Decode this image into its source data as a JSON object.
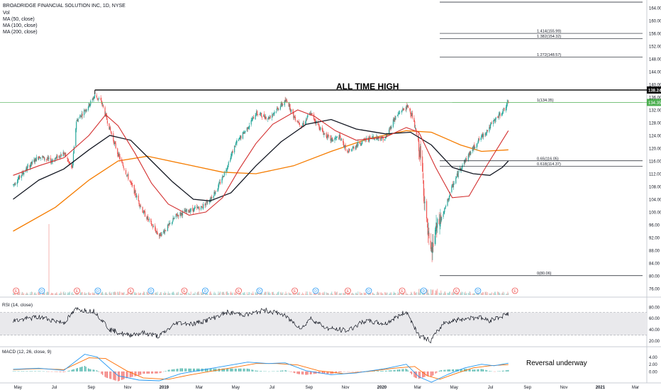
{
  "header": {
    "title": "BROADRIDGE FINANCIAL SOLUTION INC, 1D, NYSE",
    "indicators": [
      "Vol",
      "MA (50, close)",
      "MA (100, close)",
      "MA (200, close)"
    ]
  },
  "annotations": {
    "ath_label": "ALL TIME HIGH",
    "reversal_label": "Reversal underway"
  },
  "colors": {
    "candle_up": "#26a69a",
    "candle_down": "#ef5350",
    "ma50": "#d32f2f",
    "ma100": "#131722",
    "ma200": "#f57c00",
    "rsi": "#131722",
    "rsi_band": "#e9e9ec",
    "macd": "#2196f3",
    "signal": "#ff6d00",
    "ath_line": "#000000",
    "last_price_line": "#4caf50",
    "fib_line": "#131722"
  },
  "chart_data": {
    "type": "line",
    "price_axis": {
      "ticks": [
        "164.00",
        "160.00",
        "156.00",
        "152.00",
        "148.00",
        "144.00",
        "140.00",
        "136.00",
        "132.00",
        "128.00",
        "124.00",
        "120.00",
        "116.00",
        "112.00",
        "108.00",
        "104.00",
        "100.00",
        "96.00",
        "92.00",
        "88.00",
        "84.00",
        "80.00",
        "76.00"
      ],
      "ath_value_label": "138.24",
      "last_value_label": "134.35",
      "ylim": [
        74,
        166
      ]
    },
    "time_axis_labels": [
      "May",
      "Jul",
      "Sep",
      "Nov",
      "2019",
      "Mar",
      "May",
      "Jul",
      "Sep",
      "Nov",
      "2020",
      "Mar",
      "May",
      "Jul",
      "Sep",
      "Nov",
      "2021",
      "Mar"
    ],
    "price_path": [
      {
        "d": "2018-04-23",
        "p": 108.5
      },
      {
        "d": "2018-05-15",
        "p": 113.5
      },
      {
        "d": "2018-06-05",
        "p": 117.5
      },
      {
        "d": "2018-06-26",
        "p": 116.0
      },
      {
        "d": "2018-07-17",
        "p": 118.5
      },
      {
        "d": "2018-07-31",
        "p": 113.5
      },
      {
        "d": "2018-08-07",
        "p": 128.5
      },
      {
        "d": "2018-08-28",
        "p": 133.5
      },
      {
        "d": "2018-09-07",
        "p": 136.5
      },
      {
        "d": "2018-09-18",
        "p": 134.5
      },
      {
        "d": "2018-10-02",
        "p": 126.0
      },
      {
        "d": "2018-10-16",
        "p": 118.0
      },
      {
        "d": "2018-10-30",
        "p": 112.0
      },
      {
        "d": "2018-11-13",
        "p": 106.0
      },
      {
        "d": "2018-11-27",
        "p": 100.0
      },
      {
        "d": "2018-12-11",
        "p": 96.0
      },
      {
        "d": "2018-12-24",
        "p": 92.5
      },
      {
        "d": "2019-01-08",
        "p": 95.5
      },
      {
        "d": "2019-01-22",
        "p": 99.0
      },
      {
        "d": "2019-02-12",
        "p": 100.5
      },
      {
        "d": "2019-03-05",
        "p": 101.5
      },
      {
        "d": "2019-03-19",
        "p": 104.0
      },
      {
        "d": "2019-04-02",
        "p": 108.0
      },
      {
        "d": "2019-04-16",
        "p": 114.0
      },
      {
        "d": "2019-04-30",
        "p": 121.0
      },
      {
        "d": "2019-05-21",
        "p": 126.5
      },
      {
        "d": "2019-06-04",
        "p": 131.0
      },
      {
        "d": "2019-06-25",
        "p": 129.5
      },
      {
        "d": "2019-07-16",
        "p": 133.5
      },
      {
        "d": "2019-07-26",
        "p": 135.0
      },
      {
        "d": "2019-08-06",
        "p": 130.0
      },
      {
        "d": "2019-08-20",
        "p": 127.0
      },
      {
        "d": "2019-09-03",
        "p": 131.0
      },
      {
        "d": "2019-09-24",
        "p": 125.0
      },
      {
        "d": "2019-10-08",
        "p": 122.5
      },
      {
        "d": "2019-10-22",
        "p": 123.5
      },
      {
        "d": "2019-11-05",
        "p": 118.5
      },
      {
        "d": "2019-11-19",
        "p": 121.0
      },
      {
        "d": "2019-12-03",
        "p": 122.5
      },
      {
        "d": "2019-12-17",
        "p": 123.5
      },
      {
        "d": "2020-01-07",
        "p": 123.0
      },
      {
        "d": "2020-01-21",
        "p": 129.0
      },
      {
        "d": "2020-02-04",
        "p": 132.0
      },
      {
        "d": "2020-02-14",
        "p": 133.0
      },
      {
        "d": "2020-02-21",
        "p": 130.0
      },
      {
        "d": "2020-03-03",
        "p": 121.0
      },
      {
        "d": "2020-03-10",
        "p": 110.0
      },
      {
        "d": "2020-03-16",
        "p": 96.0
      },
      {
        "d": "2020-03-23",
        "p": 86.0
      },
      {
        "d": "2020-03-31",
        "p": 94.0
      },
      {
        "d": "2020-04-14",
        "p": 100.0
      },
      {
        "d": "2020-04-28",
        "p": 108.0
      },
      {
        "d": "2020-05-12",
        "p": 114.0
      },
      {
        "d": "2020-05-26",
        "p": 118.0
      },
      {
        "d": "2020-06-09",
        "p": 122.0
      },
      {
        "d": "2020-06-23",
        "p": 125.0
      },
      {
        "d": "2020-07-07",
        "p": 128.5
      },
      {
        "d": "2020-07-21",
        "p": 131.5
      },
      {
        "d": "2020-07-31",
        "p": 134.35
      }
    ],
    "ma50": [
      {
        "d": "2018-04-23",
        "p": 111.5
      },
      {
        "d": "2018-06-05",
        "p": 114.5
      },
      {
        "d": "2018-07-17",
        "p": 117.0
      },
      {
        "d": "2018-08-28",
        "p": 124.0
      },
      {
        "d": "2018-09-25",
        "p": 130.5
      },
      {
        "d": "2018-10-16",
        "p": 127.0
      },
      {
        "d": "2018-11-13",
        "p": 118.5
      },
      {
        "d": "2018-12-11",
        "p": 109.0
      },
      {
        "d": "2019-01-08",
        "p": 102.5
      },
      {
        "d": "2019-02-12",
        "p": 99.0
      },
      {
        "d": "2019-03-12",
        "p": 100.0
      },
      {
        "d": "2019-04-09",
        "p": 104.5
      },
      {
        "d": "2019-05-07",
        "p": 113.5
      },
      {
        "d": "2019-06-04",
        "p": 121.5
      },
      {
        "d": "2019-07-02",
        "p": 127.5
      },
      {
        "d": "2019-08-13",
        "p": 132.0
      },
      {
        "d": "2019-09-10",
        "p": 130.0
      },
      {
        "d": "2019-10-15",
        "p": 125.5
      },
      {
        "d": "2019-11-19",
        "p": 122.5
      },
      {
        "d": "2020-01-07",
        "p": 123.5
      },
      {
        "d": "2020-02-11",
        "p": 126.5
      },
      {
        "d": "2020-03-03",
        "p": 125.0
      },
      {
        "d": "2020-03-31",
        "p": 114.0
      },
      {
        "d": "2020-04-28",
        "p": 104.5
      },
      {
        "d": "2020-05-26",
        "p": 105.0
      },
      {
        "d": "2020-06-23",
        "p": 114.0
      },
      {
        "d": "2020-07-21",
        "p": 122.5
      },
      {
        "d": "2020-07-31",
        "p": 125.5
      }
    ],
    "ma100": [
      {
        "d": "2018-04-23",
        "p": 104.0
      },
      {
        "d": "2018-06-05",
        "p": 110.0
      },
      {
        "d": "2018-07-17",
        "p": 113.5
      },
      {
        "d": "2018-08-28",
        "p": 119.5
      },
      {
        "d": "2018-10-02",
        "p": 124.0
      },
      {
        "d": "2018-11-06",
        "p": 122.5
      },
      {
        "d": "2018-12-11",
        "p": 116.0
      },
      {
        "d": "2019-01-15",
        "p": 109.5
      },
      {
        "d": "2019-02-19",
        "p": 104.0
      },
      {
        "d": "2019-03-19",
        "p": 103.5
      },
      {
        "d": "2019-04-23",
        "p": 106.0
      },
      {
        "d": "2019-06-04",
        "p": 114.5
      },
      {
        "d": "2019-07-16",
        "p": 122.0
      },
      {
        "d": "2019-08-27",
        "p": 127.5
      },
      {
        "d": "2019-10-08",
        "p": 129.0
      },
      {
        "d": "2019-11-19",
        "p": 126.0
      },
      {
        "d": "2020-01-07",
        "p": 124.5
      },
      {
        "d": "2020-02-18",
        "p": 125.0
      },
      {
        "d": "2020-03-24",
        "p": 121.0
      },
      {
        "d": "2020-04-28",
        "p": 114.0
      },
      {
        "d": "2020-06-02",
        "p": 112.0
      },
      {
        "d": "2020-06-30",
        "p": 111.5
      },
      {
        "d": "2020-07-21",
        "p": 114.0
      },
      {
        "d": "2020-07-31",
        "p": 116.0
      }
    ],
    "ma200": [
      {
        "d": "2018-04-23",
        "p": 94.0
      },
      {
        "d": "2018-07-03",
        "p": 101.5
      },
      {
        "d": "2018-08-28",
        "p": 110.0
      },
      {
        "d": "2018-10-16",
        "p": 116.0
      },
      {
        "d": "2018-12-04",
        "p": 117.5
      },
      {
        "d": "2019-02-05",
        "p": 115.0
      },
      {
        "d": "2019-04-09",
        "p": 112.5
      },
      {
        "d": "2019-06-04",
        "p": 112.0
      },
      {
        "d": "2019-08-06",
        "p": 114.5
      },
      {
        "d": "2019-10-08",
        "p": 119.0
      },
      {
        "d": "2019-12-10",
        "p": 123.0
      },
      {
        "d": "2020-02-11",
        "p": 125.5
      },
      {
        "d": "2020-03-24",
        "p": 125.0
      },
      {
        "d": "2020-05-12",
        "p": 121.0
      },
      {
        "d": "2020-06-16",
        "p": 119.0
      },
      {
        "d": "2020-07-31",
        "p": 119.5
      }
    ],
    "fib_levels": [
      {
        "label": "1.414(155.99)",
        "value": 155.99
      },
      {
        "label": "1.382(154.32)",
        "value": 154.32
      },
      {
        "label": "1.272(148.57)",
        "value": 148.57
      },
      {
        "label": "1(134.35)",
        "value": 134.35
      },
      {
        "label": "0.65(116.05)",
        "value": 116.05
      },
      {
        "label": "0.618(114.37)",
        "value": 114.37
      },
      {
        "label": "0(80.06)",
        "value": 80.06
      }
    ],
    "earnings_marker": "E",
    "dividend_marker": "D",
    "event_markers": [
      {
        "d": "2018-04-28",
        "t": "E"
      },
      {
        "d": "2018-06-10",
        "t": "D"
      },
      {
        "d": "2018-08-08",
        "t": "E"
      },
      {
        "d": "2018-09-12",
        "t": "D"
      },
      {
        "d": "2018-11-06",
        "t": "E"
      },
      {
        "d": "2018-12-10",
        "t": "D"
      },
      {
        "d": "2019-02-04",
        "t": "E"
      },
      {
        "d": "2019-03-11",
        "t": "D"
      },
      {
        "d": "2019-05-06",
        "t": "E"
      },
      {
        "d": "2019-06-10",
        "t": "D"
      },
      {
        "d": "2019-08-08",
        "t": "E"
      },
      {
        "d": "2019-09-12",
        "t": "D"
      },
      {
        "d": "2019-11-05",
        "t": "E"
      },
      {
        "d": "2019-12-10",
        "t": "D"
      },
      {
        "d": "2020-02-04",
        "t": "E"
      },
      {
        "d": "2020-03-11",
        "t": "D"
      },
      {
        "d": "2020-05-05",
        "t": "E"
      },
      {
        "d": "2020-06-10",
        "t": "D"
      },
      {
        "d": "2020-08-11",
        "t": "E"
      }
    ],
    "rsi": {
      "label": "RSI (14, close)",
      "ticks": [
        "80.00",
        "60.00",
        "40.00",
        "20.00"
      ],
      "ylim": [
        12,
        86
      ],
      "band": [
        30,
        70
      ],
      "values": [
        {
          "d": "2018-04-23",
          "v": 55
        },
        {
          "d": "2018-06-05",
          "v": 62
        },
        {
          "d": "2018-07-17",
          "v": 52
        },
        {
          "d": "2018-08-07",
          "v": 76
        },
        {
          "d": "2018-09-07",
          "v": 72
        },
        {
          "d": "2018-10-02",
          "v": 40
        },
        {
          "d": "2018-10-30",
          "v": 30
        },
        {
          "d": "2018-11-27",
          "v": 34
        },
        {
          "d": "2018-12-24",
          "v": 28
        },
        {
          "d": "2019-01-22",
          "v": 52
        },
        {
          "d": "2019-02-19",
          "v": 50
        },
        {
          "d": "2019-03-19",
          "v": 58
        },
        {
          "d": "2019-04-16",
          "v": 70
        },
        {
          "d": "2019-05-21",
          "v": 66
        },
        {
          "d": "2019-06-18",
          "v": 74
        },
        {
          "d": "2019-07-16",
          "v": 68
        },
        {
          "d": "2019-08-20",
          "v": 42
        },
        {
          "d": "2019-09-03",
          "v": 60
        },
        {
          "d": "2019-10-01",
          "v": 42
        },
        {
          "d": "2019-11-05",
          "v": 38
        },
        {
          "d": "2019-12-03",
          "v": 55
        },
        {
          "d": "2020-01-07",
          "v": 50
        },
        {
          "d": "2020-02-11",
          "v": 72
        },
        {
          "d": "2020-03-03",
          "v": 30
        },
        {
          "d": "2020-03-23",
          "v": 20
        },
        {
          "d": "2020-04-14",
          "v": 52
        },
        {
          "d": "2020-05-12",
          "v": 58
        },
        {
          "d": "2020-06-09",
          "v": 62
        },
        {
          "d": "2020-06-30",
          "v": 56
        },
        {
          "d": "2020-07-31",
          "v": 68
        }
      ]
    },
    "macd": {
      "label": "MACD (12, 26, close, 9)",
      "ticks": [
        "4.00",
        "2.00",
        "0.00"
      ],
      "ylim": [
        -3.2,
        6.5
      ],
      "macd_values": [
        {
          "d": "2018-04-23",
          "v": 0.6
        },
        {
          "d": "2018-06-05",
          "v": 0.9
        },
        {
          "d": "2018-07-17",
          "v": 0.3
        },
        {
          "d": "2018-08-21",
          "v": 4.8
        },
        {
          "d": "2018-09-11",
          "v": 4.0
        },
        {
          "d": "2018-10-16",
          "v": -1.2
        },
        {
          "d": "2018-11-20",
          "v": -2.4
        },
        {
          "d": "2018-12-24",
          "v": -2.6
        },
        {
          "d": "2019-01-29",
          "v": -0.6
        },
        {
          "d": "2019-03-05",
          "v": 0.4
        },
        {
          "d": "2019-04-16",
          "v": 1.6
        },
        {
          "d": "2019-05-21",
          "v": 2.6
        },
        {
          "d": "2019-06-25",
          "v": 2.2
        },
        {
          "d": "2019-07-23",
          "v": 2.4
        },
        {
          "d": "2019-08-27",
          "v": 0.2
        },
        {
          "d": "2019-10-08",
          "v": -0.9
        },
        {
          "d": "2019-11-19",
          "v": -0.4
        },
        {
          "d": "2020-01-07",
          "v": 0.8
        },
        {
          "d": "2020-02-11",
          "v": 2.0
        },
        {
          "d": "2020-03-03",
          "v": -1.5
        },
        {
          "d": "2020-03-24",
          "v": -3.0
        },
        {
          "d": "2020-04-21",
          "v": -0.8
        },
        {
          "d": "2020-05-19",
          "v": 1.0
        },
        {
          "d": "2020-06-16",
          "v": 2.0
        },
        {
          "d": "2020-07-07",
          "v": 1.6
        },
        {
          "d": "2020-07-31",
          "v": 2.3
        }
      ],
      "signal_values": [
        {
          "d": "2018-04-23",
          "v": 0.5
        },
        {
          "d": "2018-06-05",
          "v": 0.8
        },
        {
          "d": "2018-07-17",
          "v": 0.5
        },
        {
          "d": "2018-08-28",
          "v": 3.8
        },
        {
          "d": "2018-09-25",
          "v": 3.6
        },
        {
          "d": "2018-10-30",
          "v": 0.2
        },
        {
          "d": "2018-11-27",
          "v": -1.8
        },
        {
          "d": "2019-01-08",
          "v": -2.2
        },
        {
          "d": "2019-02-12",
          "v": -1.0
        },
        {
          "d": "2019-03-19",
          "v": 0.0
        },
        {
          "d": "2019-04-30",
          "v": 1.2
        },
        {
          "d": "2019-06-04",
          "v": 2.2
        },
        {
          "d": "2019-07-09",
          "v": 2.2
        },
        {
          "d": "2019-08-13",
          "v": 1.8
        },
        {
          "d": "2019-09-17",
          "v": 0.2
        },
        {
          "d": "2019-10-29",
          "v": -0.6
        },
        {
          "d": "2019-12-10",
          "v": 0.0
        },
        {
          "d": "2020-01-21",
          "v": 0.9
        },
        {
          "d": "2020-02-25",
          "v": 1.4
        },
        {
          "d": "2020-03-17",
          "v": -1.2
        },
        {
          "d": "2020-04-07",
          "v": -2.2
        },
        {
          "d": "2020-05-05",
          "v": -0.5
        },
        {
          "d": "2020-06-02",
          "v": 1.0
        },
        {
          "d": "2020-06-30",
          "v": 1.6
        },
        {
          "d": "2020-07-31",
          "v": 1.9
        }
      ]
    },
    "volume_spike_date": "2018-06-22"
  }
}
